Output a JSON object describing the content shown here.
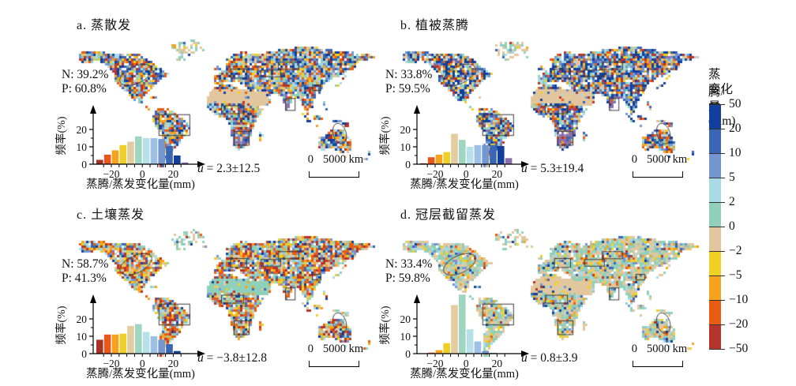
{
  "colorbar": {
    "title_line1": "蒸腾/蒸发",
    "title_line2": "变化量(mm)",
    "tick_labels": [
      "50",
      "20",
      "10",
      "5",
      "2",
      "0",
      "−2",
      "−5",
      "−10",
      "−20",
      "−50"
    ],
    "segment_colors": [
      "#123f9b",
      "#3a66b5",
      "#7396d2",
      "#a8dbe6",
      "#8fd0bb",
      "#e2c79e",
      "#f0d024",
      "#f5a31e",
      "#ea5c14",
      "#b5352a"
    ]
  },
  "hist_axis": {
    "ylabel": "频率(%)",
    "xlabel": "蒸腾/蒸发变化量(mm)",
    "yticks": [
      "0",
      "10",
      "20"
    ],
    "xticks": [
      "−20",
      "0",
      "20"
    ]
  },
  "palette": {
    "map_colors": [
      "#123f9b",
      "#3a66b5",
      "#7396d2",
      "#a8dbe6",
      "#8fd0bb",
      "#e2c79e",
      "#f0d024",
      "#f5a31e",
      "#ea5c14",
      "#b5352a",
      "#8e6fae"
    ],
    "hist_bar_colors": [
      "#a93226",
      "#e6571b",
      "#f5a31e",
      "#f0d028",
      "#e3cd9e",
      "#9fd6c2",
      "#b7e1e9",
      "#9cc0e6",
      "#7396d2",
      "#3a66b5",
      "#123f9b",
      "#8e6fae"
    ]
  },
  "panels": [
    {
      "id": "a",
      "title": "a. 蒸散发",
      "n": "N: 39.2%",
      "p": "P: 60.8%",
      "mean_prefix": "ū",
      "mean_rest": " = 2.3±12.5",
      "scale_zero": "0",
      "scale_label": "5000 km",
      "hist": [
        2.5,
        5.5,
        8,
        11,
        13,
        16,
        15,
        15,
        14.5,
        10.5,
        5,
        1
      ]
    },
    {
      "id": "b",
      "title": "b. 植被蒸腾",
      "n": "N: 33.8%",
      "p": "P: 59.5%",
      "mean_prefix": "ū",
      "mean_rest": " = 5.3±19.4",
      "scale_zero": "0",
      "scale_label": "5000 km",
      "hist": [
        0.5,
        4,
        5.5,
        7,
        17.5,
        14,
        10,
        11,
        11,
        11,
        10.5,
        3.5
      ]
    },
    {
      "id": "c",
      "title": "c. 土壤蒸发",
      "n": "N: 58.7%",
      "p": "P: 41.3%",
      "mean_prefix": "ū",
      "mean_rest": " = −3.8±12.8",
      "scale_zero": "0",
      "scale_label": "5000 km",
      "hist": [
        8,
        11,
        11,
        11.5,
        16,
        17,
        12.5,
        10,
        8,
        5.5,
        1.5,
        0.3
      ]
    },
    {
      "id": "d",
      "title": "d. 冠层截留蒸发",
      "n": "N: 33.4%",
      "p": "P: 59.8%",
      "mean_prefix": "ū",
      "mean_rest": " = 0.8±3.9",
      "scale_zero": "0",
      "scale_label": "5000 km",
      "hist": [
        0.1,
        0.6,
        2,
        6,
        28,
        34,
        14,
        7,
        1.5,
        0.4,
        0.1,
        0
      ]
    }
  ],
  "chart_data": [
    {
      "type": "bar",
      "title": "a. 蒸散发",
      "xlabel": "蒸腾/蒸发变化量(mm)",
      "ylabel": "频率(%)",
      "ylim": [
        0,
        25
      ],
      "categories": [
        "<−50",
        "−50~−20",
        "−20~−10",
        "−10~−5",
        "−5~−2",
        "−2~0",
        "0~2",
        "2~5",
        "5~10",
        "10~20",
        "20~50",
        ">50"
      ],
      "values": [
        2.5,
        5.5,
        8,
        11,
        13,
        16,
        15,
        15,
        14.5,
        10.5,
        5,
        1
      ],
      "annotations": [
        "N: 39.2%",
        "P: 60.8%",
        "ū = 2.3±12.5",
        "0 5000 km"
      ]
    },
    {
      "type": "bar",
      "title": "b. 植被蒸腾",
      "xlabel": "蒸腾/蒸发变化量(mm)",
      "ylabel": "频率(%)",
      "ylim": [
        0,
        25
      ],
      "categories": [
        "<−50",
        "−50~−20",
        "−20~−10",
        "−10~−5",
        "−5~−2",
        "−2~0",
        "0~2",
        "2~5",
        "5~10",
        "10~20",
        "20~50",
        ">50"
      ],
      "values": [
        0.5,
        4,
        5.5,
        7,
        17.5,
        14,
        10,
        11,
        11,
        11,
        10.5,
        3.5
      ],
      "annotations": [
        "N: 33.8%",
        "P: 59.5%",
        "ū = 5.3±19.4",
        "0 5000 km"
      ]
    },
    {
      "type": "bar",
      "title": "c. 土壤蒸发",
      "xlabel": "蒸腾/蒸发变化量(mm)",
      "ylabel": "频率(%)",
      "ylim": [
        0,
        25
      ],
      "categories": [
        "<−50",
        "−50~−20",
        "−20~−10",
        "−10~−5",
        "−5~−2",
        "−2~0",
        "0~2",
        "2~5",
        "5~10",
        "10~20",
        "20~50",
        ">50"
      ],
      "values": [
        8,
        11,
        11,
        11.5,
        16,
        17,
        12.5,
        10,
        8,
        5.5,
        1.5,
        0.3
      ],
      "annotations": [
        "N: 58.7%",
        "P: 41.3%",
        "ū = −3.8±12.8",
        "0 5000 km"
      ]
    },
    {
      "type": "bar",
      "title": "d. 冠层截留蒸发",
      "xlabel": "蒸腾/蒸发变化量(mm)",
      "ylabel": "频率(%)",
      "ylim": [
        0,
        25
      ],
      "categories": [
        "<−50",
        "−50~−20",
        "−20~−10",
        "−10~−5",
        "−5~−2",
        "−2~0",
        "0~2",
        "2~5",
        "5~10",
        "10~20",
        "20~50",
        ">50"
      ],
      "values": [
        0.1,
        0.6,
        2,
        6,
        28,
        34,
        14,
        7,
        1.5,
        0.4,
        0.1,
        0
      ],
      "annotations": [
        "N: 33.4%",
        "P: 59.8%",
        "ū = 0.8±3.9",
        "0 5000 km"
      ]
    },
    {
      "type": "heatmap",
      "title": "蒸腾/蒸发变化量(mm) — 全球分布图例",
      "legend_ticks": [
        "50",
        "20",
        "10",
        "5",
        "2",
        "0",
        "−2",
        "−5",
        "−10",
        "−20",
        "−50"
      ],
      "legend_colors": [
        "#123f9b",
        "#3a66b5",
        "#7396d2",
        "#a8dbe6",
        "#8fd0bb",
        "#e2c79e",
        "#f0d024",
        "#f5a31e",
        "#ea5c14",
        "#b5352a"
      ]
    }
  ]
}
